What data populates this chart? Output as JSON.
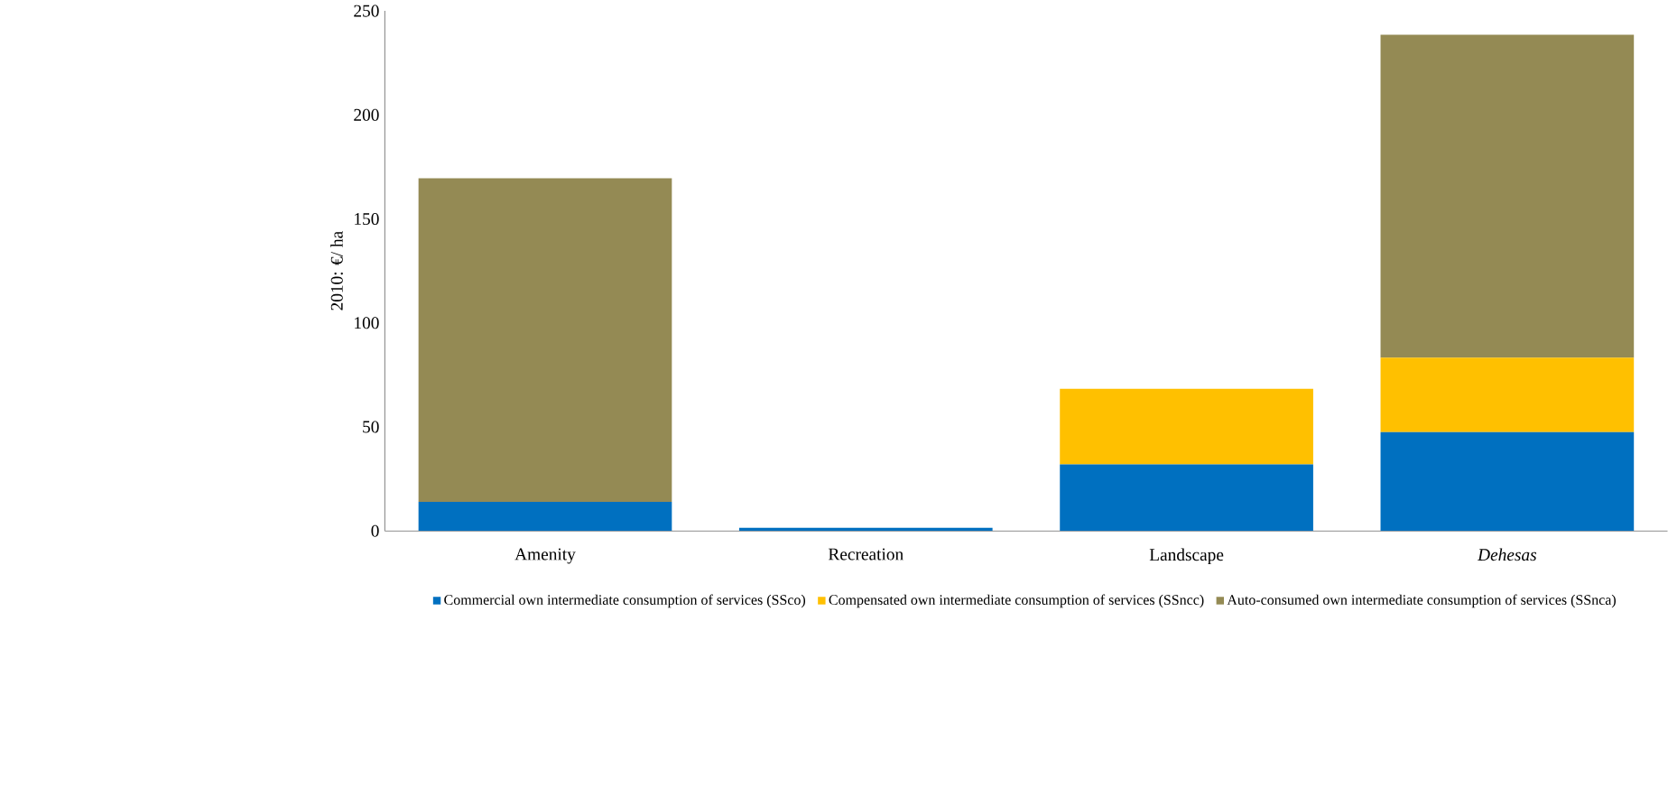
{
  "chart_data": {
    "type": "bar",
    "stacked": true,
    "ylabel": "2010: €/ ha",
    "categories": [
      "Amenity",
      "Recreation",
      "Landscape",
      "*Dehesas*"
    ],
    "series": [
      {
        "name": "Commercial own intermediate consumption of services (SSco)",
        "color": "#0070c0",
        "values": [
          14,
          1.5,
          32,
          47.5
        ]
      },
      {
        "name": "Compensated own intermediate consumption of services (SSncc)",
        "color": "#ffc000",
        "values": [
          0,
          0,
          36.3,
          35.8
        ]
      },
      {
        "name": "Auto-consumed own intermediate consumption of services (SSnca)",
        "color": "#948a54",
        "values": [
          155.5,
          0,
          0,
          155.3
        ]
      }
    ],
    "ylim": [
      0,
      250
    ],
    "yticks": [
      0,
      50,
      100,
      150,
      200,
      250
    ],
    "grid": false,
    "legend": "bottom"
  }
}
